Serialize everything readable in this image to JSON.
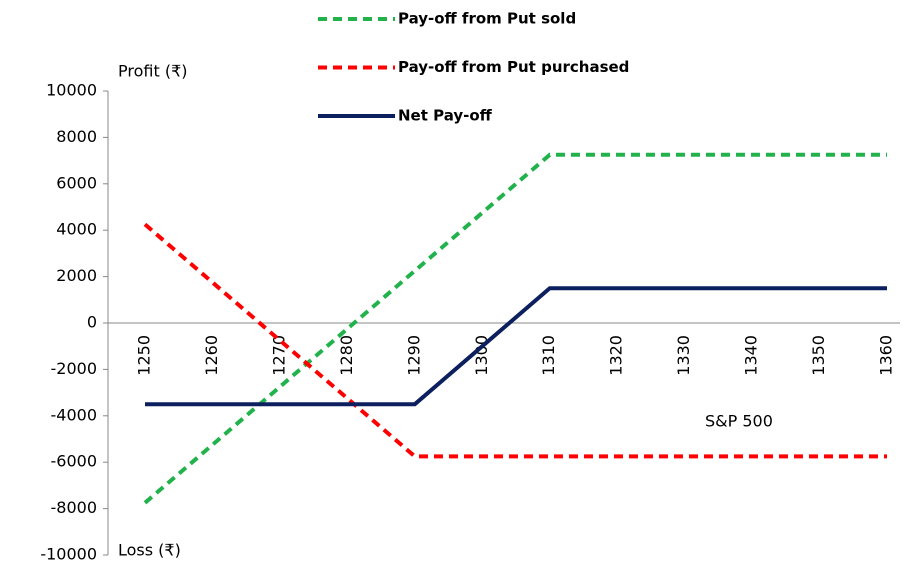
{
  "chart_data": {
    "type": "line",
    "y_label_top": "Profit (₹)",
    "y_label_bottom": "Loss (₹)",
    "x_label": "S&P 500",
    "categories": [
      "1250",
      "1260",
      "1270",
      "1280",
      "1290",
      "1300",
      "1310",
      "1320",
      "1330",
      "1340",
      "1350",
      "1360"
    ],
    "series": [
      {
        "name": "Pay-off from Put sold",
        "color": "#22b24c",
        "dashed": true,
        "values": [
          -7750,
          -5250,
          -2750,
          -250,
          2250,
          4750,
          7250,
          7250,
          7250,
          7250,
          7250,
          7250
        ]
      },
      {
        "name": "Pay-off from Put purchased",
        "color": "#ff0000",
        "dashed": true,
        "values": [
          4250,
          1750,
          -750,
          -3250,
          -5750,
          -5750,
          -5750,
          -5750,
          -5750,
          -5750,
          -5750,
          -5750
        ]
      },
      {
        "name": "Net Pay-off",
        "color": "#0c1f5e",
        "dashed": false,
        "values": [
          -3500,
          -3500,
          -3500,
          -3500,
          -3500,
          -1000,
          1500,
          1500,
          1500,
          1500,
          1500,
          1500
        ]
      }
    ],
    "ylim": [
      -10000,
      10000
    ],
    "yticks": [
      -10000,
      -8000,
      -6000,
      -4000,
      -2000,
      0,
      2000,
      4000,
      6000,
      8000,
      10000
    ],
    "legend": "top",
    "grid": false
  }
}
